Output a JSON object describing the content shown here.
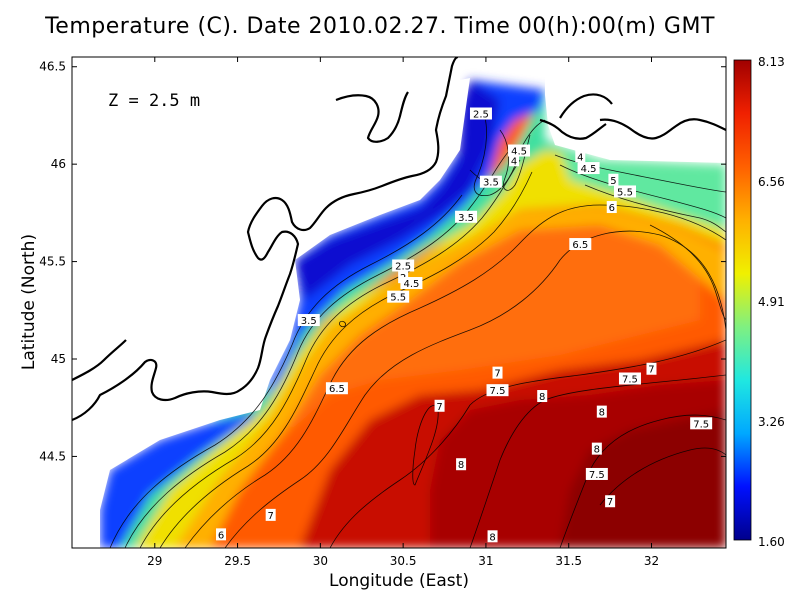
{
  "title": "Temperature (C). Date 2010.02.27. Time 00(h):00(m) GMT",
  "depth_label": "Z = 2.5 m",
  "x_axis": {
    "label": "Longitude (East)",
    "range": [
      28.5,
      32.45
    ],
    "ticks": [
      "29",
      "29.5",
      "30",
      "30.5",
      "31",
      "31.5",
      "32"
    ]
  },
  "y_axis": {
    "label": "Latitude (North)",
    "range": [
      44.03,
      46.55
    ],
    "ticks": [
      "44.5",
      "45",
      "45.5",
      "46",
      "46.5"
    ]
  },
  "colorbar": {
    "min": 1.6,
    "max": 8.13,
    "tick_labels": [
      "8.13",
      "6.56",
      "4.91",
      "3.26",
      "1.60"
    ],
    "colors": [
      "#00008c",
      "#0010ff",
      "#00a8ff",
      "#20e8e0",
      "#80f080",
      "#f0f000",
      "#ffb000",
      "#ff6000",
      "#f02000",
      "#a00000"
    ]
  },
  "contour_labels": [
    {
      "text": "2.5",
      "lon": 30.5,
      "lat": 45.48
    },
    {
      "text": "2",
      "lon": 30.5,
      "lat": 45.42
    },
    {
      "text": "4.5",
      "lon": 30.55,
      "lat": 45.39
    },
    {
      "text": "5.5",
      "lon": 30.47,
      "lat": 45.32
    },
    {
      "text": "3.5",
      "lon": 29.93,
      "lat": 45.2
    },
    {
      "text": "2.5",
      "lon": 30.97,
      "lat": 46.26
    },
    {
      "text": "4.5",
      "lon": 31.2,
      "lat": 46.07
    },
    {
      "text": "4",
      "lon": 31.17,
      "lat": 46.02
    },
    {
      "text": "3.5",
      "lon": 31.03,
      "lat": 45.91
    },
    {
      "text": "4",
      "lon": 31.57,
      "lat": 46.04
    },
    {
      "text": "4.5",
      "lon": 31.62,
      "lat": 45.98
    },
    {
      "text": "5",
      "lon": 31.77,
      "lat": 45.92
    },
    {
      "text": "5.5",
      "lon": 31.84,
      "lat": 45.86
    },
    {
      "text": "6",
      "lon": 31.76,
      "lat": 45.78
    },
    {
      "text": "3.5",
      "lon": 30.88,
      "lat": 45.73
    },
    {
      "text": "6.5",
      "lon": 31.57,
      "lat": 45.59
    },
    {
      "text": "6.5",
      "lon": 30.1,
      "lat": 44.85
    },
    {
      "text": "7",
      "lon": 31.07,
      "lat": 44.93
    },
    {
      "text": "7.5",
      "lon": 31.07,
      "lat": 44.84
    },
    {
      "text": "7",
      "lon": 30.72,
      "lat": 44.76
    },
    {
      "text": "8",
      "lon": 31.34,
      "lat": 44.81
    },
    {
      "text": "7.5",
      "lon": 31.87,
      "lat": 44.9
    },
    {
      "text": "7",
      "lon": 32.0,
      "lat": 44.95
    },
    {
      "text": "8",
      "lon": 31.7,
      "lat": 44.73
    },
    {
      "text": "7.5",
      "lon": 32.3,
      "lat": 44.67
    },
    {
      "text": "8",
      "lon": 31.67,
      "lat": 44.54
    },
    {
      "text": "8",
      "lon": 30.85,
      "lat": 44.46
    },
    {
      "text": "7.5",
      "lon": 31.67,
      "lat": 44.41
    },
    {
      "text": "7",
      "lon": 31.75,
      "lat": 44.27
    },
    {
      "text": "7",
      "lon": 29.7,
      "lat": 44.2
    },
    {
      "text": "6",
      "lon": 29.4,
      "lat": 44.1
    },
    {
      "text": "8",
      "lon": 31.04,
      "lat": 44.09
    }
  ]
}
